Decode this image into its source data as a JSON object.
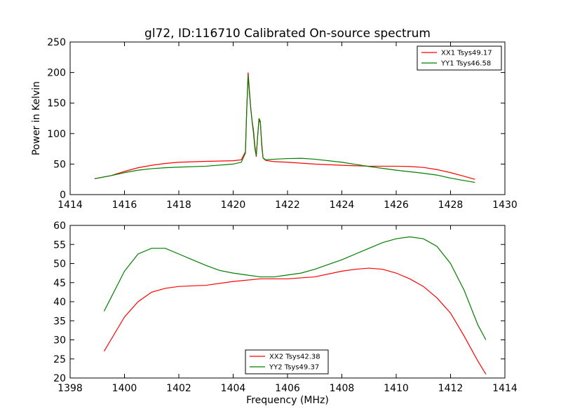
{
  "title": "gl72, ID:116710 Calibrated On-source spectrum",
  "ylabel": "Power in Kelvin",
  "xlabel": "Frequency (MHz)",
  "colors": {
    "xx": "#ff0000",
    "yy": "#007f00"
  },
  "chart_data": [
    {
      "type": "line",
      "xlim": [
        1414,
        1430
      ],
      "ylim": [
        0,
        250
      ],
      "xticks": [
        1414,
        1416,
        1418,
        1420,
        1422,
        1424,
        1426,
        1428,
        1430
      ],
      "yticks": [
        0,
        50,
        100,
        150,
        200,
        250
      ],
      "legend": "top-right",
      "series": [
        {
          "name": "XX1 Tsys49.17",
          "color": "#ff0000",
          "points": [
            [
              1414.9,
              26
            ],
            [
              1415.5,
              31
            ],
            [
              1416,
              38
            ],
            [
              1416.5,
              44
            ],
            [
              1417,
              48
            ],
            [
              1417.5,
              51
            ],
            [
              1418,
              53
            ],
            [
              1419,
              54.5
            ],
            [
              1420,
              55.5
            ],
            [
              1420.3,
              57
            ],
            [
              1420.45,
              70
            ],
            [
              1420.5,
              140
            ],
            [
              1420.55,
              200
            ],
            [
              1420.6,
              170
            ],
            [
              1420.65,
              140
            ],
            [
              1420.7,
              120
            ],
            [
              1420.75,
              105
            ],
            [
              1420.8,
              80
            ],
            [
              1420.85,
              62
            ],
            [
              1420.9,
              95
            ],
            [
              1420.95,
              122
            ],
            [
              1421,
              118
            ],
            [
              1421.05,
              85
            ],
            [
              1421.1,
              60
            ],
            [
              1421.2,
              56
            ],
            [
              1421.5,
              54
            ],
            [
              1422,
              53
            ],
            [
              1423,
              50
            ],
            [
              1424,
              48
            ],
            [
              1425,
              46.5
            ],
            [
              1426,
              46.5
            ],
            [
              1426.5,
              46
            ],
            [
              1427,
              44.5
            ],
            [
              1427.5,
              41
            ],
            [
              1428,
              36
            ],
            [
              1428.5,
              30
            ],
            [
              1428.9,
              25
            ]
          ]
        },
        {
          "name": "YY1 Tsys46.58",
          "color": "#007f00",
          "points": [
            [
              1414.9,
              26
            ],
            [
              1415.5,
              31
            ],
            [
              1416,
              36
            ],
            [
              1416.5,
              40
            ],
            [
              1417,
              42.5
            ],
            [
              1417.5,
              44
            ],
            [
              1418,
              45
            ],
            [
              1419,
              46.5
            ],
            [
              1420,
              50
            ],
            [
              1420.3,
              53
            ],
            [
              1420.45,
              68
            ],
            [
              1420.5,
              140
            ],
            [
              1420.55,
              195
            ],
            [
              1420.6,
              165
            ],
            [
              1420.65,
              140
            ],
            [
              1420.7,
              118
            ],
            [
              1420.75,
              100
            ],
            [
              1420.8,
              75
            ],
            [
              1420.85,
              64
            ],
            [
              1420.9,
              95
            ],
            [
              1420.95,
              125
            ],
            [
              1421,
              120
            ],
            [
              1421.05,
              80
            ],
            [
              1421.1,
              60
            ],
            [
              1421.2,
              57
            ],
            [
              1421.5,
              58
            ],
            [
              1422,
              59
            ],
            [
              1422.5,
              59.5
            ],
            [
              1423,
              58
            ],
            [
              1424,
              53
            ],
            [
              1425,
              46
            ],
            [
              1426,
              40
            ],
            [
              1427,
              35
            ],
            [
              1427.5,
              32
            ],
            [
              1428,
              27
            ],
            [
              1428.5,
              23
            ],
            [
              1428.9,
              20
            ]
          ]
        }
      ]
    },
    {
      "type": "line",
      "xlim": [
        1398,
        1414
      ],
      "ylim": [
        20,
        60
      ],
      "xticks": [
        1398,
        1400,
        1402,
        1404,
        1406,
        1408,
        1410,
        1412,
        1414
      ],
      "yticks": [
        20,
        25,
        30,
        35,
        40,
        45,
        50,
        55,
        60
      ],
      "legend": "bottom-center",
      "series": [
        {
          "name": "XX2 Tsys42.38",
          "color": "#ff0000",
          "points": [
            [
              1399.25,
              27
            ],
            [
              1399.5,
              30
            ],
            [
              1400,
              36
            ],
            [
              1400.5,
              40
            ],
            [
              1401,
              42.5
            ],
            [
              1401.5,
              43.5
            ],
            [
              1402,
              44
            ],
            [
              1403,
              44.3
            ],
            [
              1404,
              45.3
            ],
            [
              1405,
              46
            ],
            [
              1406,
              46
            ],
            [
              1407,
              46.5
            ],
            [
              1408,
              48
            ],
            [
              1408.5,
              48.5
            ],
            [
              1409,
              48.8
            ],
            [
              1409.5,
              48.5
            ],
            [
              1410,
              47.5
            ],
            [
              1410.5,
              46
            ],
            [
              1411,
              44
            ],
            [
              1411.5,
              41
            ],
            [
              1412,
              37
            ],
            [
              1412.5,
              31
            ],
            [
              1413,
              24.5
            ],
            [
              1413.3,
              21
            ]
          ]
        },
        {
          "name": "YY2 Tsys49.37",
          "color": "#007f00",
          "points": [
            [
              1399.25,
              37.5
            ],
            [
              1399.5,
              41
            ],
            [
              1400,
              48
            ],
            [
              1400.5,
              52.5
            ],
            [
              1401,
              54
            ],
            [
              1401.5,
              54
            ],
            [
              1402,
              52.5
            ],
            [
              1402.5,
              51
            ],
            [
              1403,
              49.5
            ],
            [
              1403.5,
              48.2
            ],
            [
              1404,
              47.5
            ],
            [
              1404.5,
              47
            ],
            [
              1405,
              46.5
            ],
            [
              1405.5,
              46.5
            ],
            [
              1406,
              47
            ],
            [
              1406.5,
              47.5
            ],
            [
              1407,
              48.5
            ],
            [
              1408,
              51
            ],
            [
              1409,
              54
            ],
            [
              1409.5,
              55.5
            ],
            [
              1410,
              56.5
            ],
            [
              1410.5,
              57
            ],
            [
              1411,
              56.5
            ],
            [
              1411.5,
              54.5
            ],
            [
              1412,
              50
            ],
            [
              1412.5,
              43
            ],
            [
              1413,
              34
            ],
            [
              1413.3,
              30
            ]
          ]
        }
      ]
    }
  ]
}
